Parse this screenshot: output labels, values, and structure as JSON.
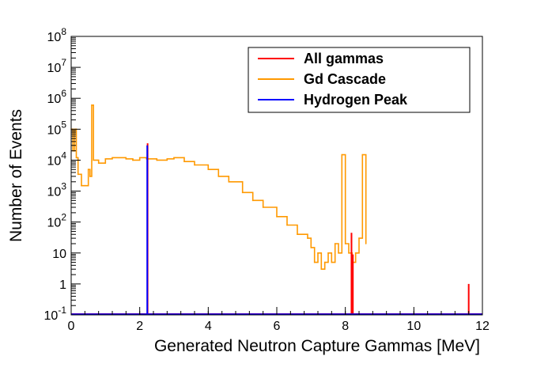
{
  "chart_data": {
    "type": "line",
    "title": "",
    "xlabel": "Generated Neutron Capture Gammas [MeV]",
    "ylabel": "Number of Events",
    "xlim": [
      0,
      12
    ],
    "ylim": [
      0.1,
      100000000
    ],
    "yscale": "log",
    "x_ticks": [
      "0",
      "2",
      "4",
      "6",
      "8",
      "10",
      "12"
    ],
    "y_ticks": [
      "10^-1",
      "1",
      "10",
      "10^2",
      "10^3",
      "10^4",
      "10^5",
      "10^6",
      "10^7",
      "10^8"
    ],
    "legend": "top-right",
    "series": [
      {
        "name": "All gammas",
        "color": "#ff0000",
        "points": [
          [
            2.23,
            35000
          ],
          [
            8.18,
            45
          ],
          [
            8.22,
            9
          ],
          [
            11.6,
            1.0
          ]
        ]
      },
      {
        "name": "Gd Cascade",
        "color": "#ff9900",
        "x": [
          0.0,
          0.05,
          0.1,
          0.15,
          0.2,
          0.3,
          0.4,
          0.5,
          0.55,
          0.6,
          0.65,
          0.8,
          1.0,
          1.2,
          1.4,
          1.6,
          1.8,
          2.0,
          2.2,
          2.5,
          2.8,
          3.0,
          3.3,
          3.6,
          4.0,
          4.3,
          4.6,
          5.0,
          5.3,
          5.6,
          6.0,
          6.3,
          6.6,
          6.9,
          7.0,
          7.1,
          7.2,
          7.3,
          7.4,
          7.5,
          7.6,
          7.7,
          7.8,
          7.9,
          8.0,
          8.1,
          8.2,
          8.3,
          8.4,
          8.5,
          8.6
        ],
        "values": [
          100000,
          20000,
          100000,
          12000,
          3500,
          1500,
          1500,
          5000,
          3000,
          600000,
          10000,
          8000,
          11000,
          12000,
          12000,
          11000,
          10000,
          12000,
          11000,
          10000,
          11000,
          12000,
          9000,
          7000,
          5000,
          3000,
          2000,
          900,
          500,
          300,
          150,
          80,
          40,
          30,
          15,
          5,
          10,
          3,
          5,
          10,
          5,
          20,
          10,
          15000,
          20,
          10,
          5,
          10,
          30,
          15000,
          20
        ]
      },
      {
        "name": "Hydrogen Peak",
        "color": "#0000ff",
        "points": [
          [
            2.22,
            30000
          ]
        ]
      }
    ]
  }
}
